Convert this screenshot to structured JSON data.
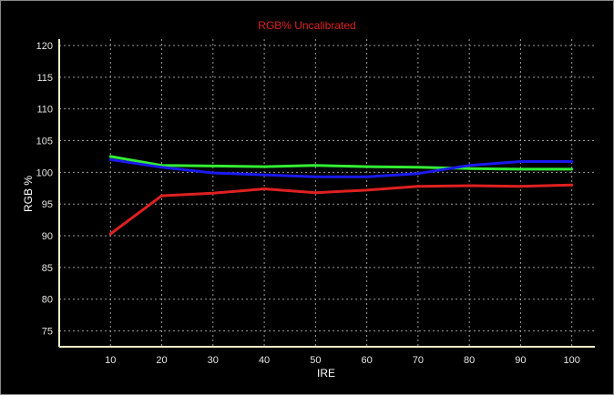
{
  "chart_data": {
    "type": "line",
    "title": "RGB% Uncalibrated",
    "xlabel": "IRE",
    "ylabel": "RGB %",
    "x": [
      10,
      20,
      30,
      40,
      50,
      60,
      70,
      80,
      90,
      100
    ],
    "xticks": [
      "10",
      "20",
      "30",
      "40",
      "50",
      "60",
      "70",
      "80",
      "90",
      "100"
    ],
    "yticks": [
      "75",
      "80",
      "85",
      "90",
      "95",
      "100",
      "105",
      "110",
      "115",
      "120"
    ],
    "xlim": [
      0,
      104.5
    ],
    "ylim": [
      72.5,
      121
    ],
    "grid": true,
    "background": "#000000",
    "series": [
      {
        "color": "#e02020",
        "values": [
          90.3,
          96.3,
          96.7,
          97.4,
          96.8,
          97.2,
          97.8,
          97.9,
          97.8,
          98.0
        ]
      },
      {
        "color": "#33ee33",
        "values": [
          102.5,
          101.1,
          101.0,
          100.9,
          101.1,
          100.9,
          100.8,
          100.6,
          100.5,
          100.5
        ]
      },
      {
        "color": "#1a1aee",
        "values": [
          102.0,
          100.8,
          99.9,
          99.6,
          99.3,
          99.3,
          99.8,
          101.1,
          101.7,
          101.7
        ]
      }
    ]
  }
}
